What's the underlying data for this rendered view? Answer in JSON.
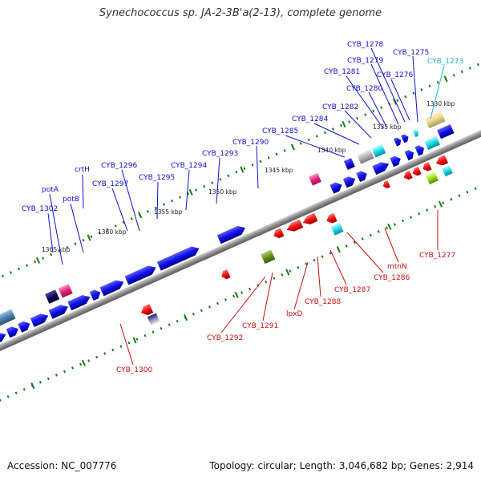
{
  "title": "Synechococcus sp. JA-2-3B'a(2-13), complete genome",
  "footer": {
    "accession": "Accession: NC_007776",
    "topology": "Topology: circular; Length: 3,046,682 bp; Genes: 2,914"
  },
  "colors": {
    "forward_label": "#1010c8",
    "reverse_label": "#c81010",
    "rna_label": "#20b0e0",
    "backbone": "#8a8a8a",
    "tick": "#1a7a1a"
  },
  "tick_labels": [
    "1330 kbp",
    "1335 kbp",
    "1340 kbp",
    "1345 kbp",
    "1350 kbp",
    "1355 kbp",
    "1360 kbp",
    "1365 kbp"
  ],
  "forward_labels": [
    "CYB_1278",
    "CYB_1275",
    "CYB_1279",
    "CYB_1281",
    "CYB_1276",
    "CYB_1280",
    "CYB_1282",
    "CYB_1284",
    "CYB_1285",
    "CYB_1290",
    "CYB_1293",
    "CYB_1294",
    "CYB_1296",
    "CYB_1295",
    "CYB_1297",
    "crtH",
    "potA",
    "potB",
    "CYB_1302"
  ],
  "rna_labels": [
    "CYB_1273"
  ],
  "reverse_labels": [
    "CYB_1277",
    "mtnN",
    "CYB_1286",
    "CYB_1287",
    "CYB_1288",
    "lpxD",
    "CYB_1291",
    "CYB_1292",
    "CYB_1300"
  ]
}
